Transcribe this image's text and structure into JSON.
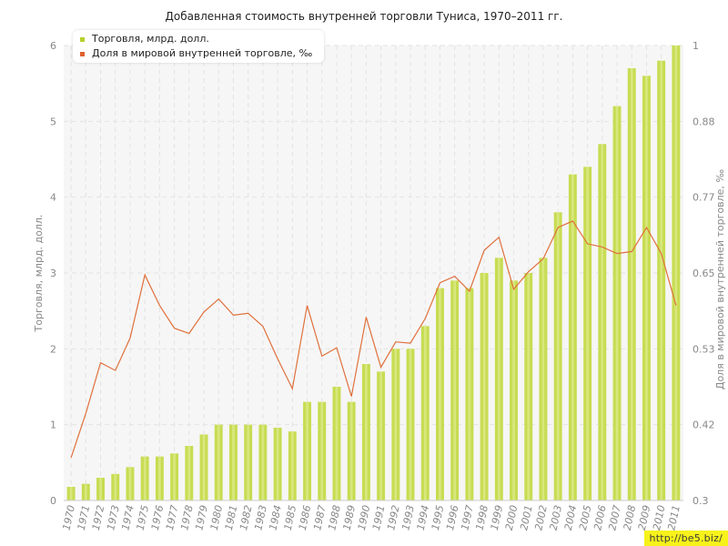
{
  "title": "Добавленная стоимость внутренней торговли Туниса, 1970–2011 гг.",
  "watermark": "http://be5.biz/",
  "colors": {
    "bar": "#c8dc52",
    "bar_highlight": "#e3ef9c",
    "line": "#e0703c",
    "grid": "#e3e3e3",
    "axis_text": "#888888"
  },
  "legend": {
    "placement": "top-left",
    "items": [
      {
        "label": "Торговля, млрд. долл.",
        "color": "#b4d22a"
      },
      {
        "label": "Доля в мировой внутренней торговле, ‰",
        "color": "#e06030"
      }
    ]
  },
  "chart_data": {
    "type": "bar",
    "title": "Добавленная стоимость внутренней торговли Туниса, 1970–2011 гг.",
    "xlabel": "",
    "ylabel": "Торговля, млрд. долл.",
    "y2label": "Доля в мировой внутренней торговле, ‰",
    "ylim": [
      0,
      6
    ],
    "y2lim": [
      0.3,
      1.0
    ],
    "yticks": [
      "0",
      "1",
      "2",
      "3",
      "4",
      "5",
      "6"
    ],
    "y2ticks": [
      "0.3",
      "0.42",
      "0.53",
      "0.65",
      "0.77",
      "0.88",
      "1"
    ],
    "grid": true,
    "categories": [
      "1970",
      "1971",
      "1972",
      "1973",
      "1974",
      "1975",
      "1976",
      "1977",
      "1978",
      "1979",
      "1980",
      "1981",
      "1982",
      "1983",
      "1984",
      "1985",
      "1986",
      "1987",
      "1988",
      "1989",
      "1990",
      "1991",
      "1992",
      "1993",
      "1994",
      "1995",
      "1996",
      "1997",
      "1998",
      "1999",
      "2000",
      "2001",
      "2002",
      "2003",
      "2004",
      "2005",
      "2006",
      "2007",
      "2008",
      "2009",
      "2010",
      "2011"
    ],
    "series": [
      {
        "name": "Торговля, млрд. долл.",
        "type": "bar",
        "axis": "left",
        "values": [
          0.18,
          0.22,
          0.3,
          0.35,
          0.44,
          0.58,
          0.58,
          0.62,
          0.72,
          0.87,
          1.0,
          1.0,
          1.0,
          1.0,
          0.96,
          0.91,
          1.3,
          1.3,
          1.5,
          1.3,
          1.8,
          1.7,
          2.0,
          2.0,
          2.3,
          2.8,
          2.9,
          2.8,
          3.0,
          3.2,
          2.9,
          3.0,
          3.2,
          3.8,
          4.3,
          4.4,
          4.7,
          5.2,
          5.7,
          5.6,
          5.8,
          6.0
        ]
      },
      {
        "name": "Доля в мировой внутренней торговле, ‰",
        "type": "line",
        "axis": "right",
        "values": [
          0.366,
          0.434,
          0.512,
          0.5,
          0.55,
          0.647,
          0.6,
          0.565,
          0.557,
          0.59,
          0.61,
          0.585,
          0.588,
          0.568,
          0.518,
          0.472,
          0.6,
          0.522,
          0.535,
          0.46,
          0.582,
          0.505,
          0.544,
          0.542,
          0.58,
          0.635,
          0.645,
          0.622,
          0.685,
          0.705,
          0.625,
          0.652,
          0.672,
          0.72,
          0.73,
          0.695,
          0.69,
          0.68,
          0.683,
          0.72,
          0.68,
          0.6
        ]
      }
    ]
  }
}
